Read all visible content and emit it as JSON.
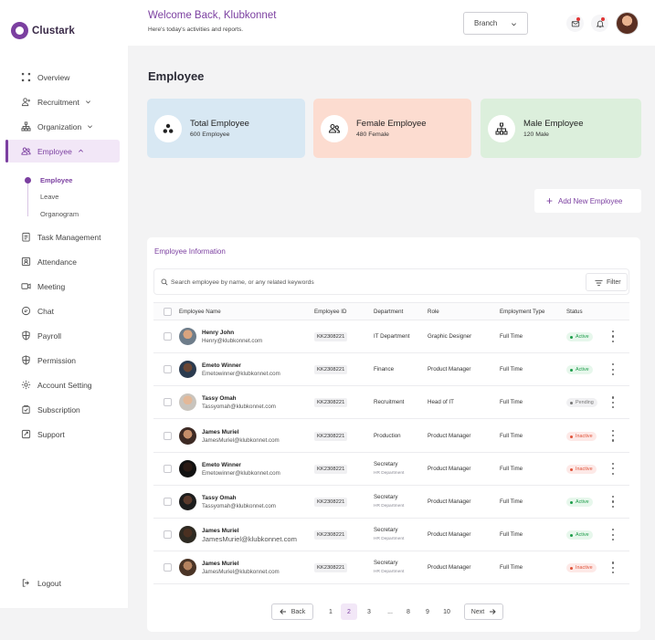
{
  "app": {
    "name": "Clustark",
    "brand_color": "#7b3fa0"
  },
  "header": {
    "welcome": "Welcome Back, Klubkonnet",
    "subtitle": "Here's today's activities and reports.",
    "branch_label": "Branch",
    "icons": [
      "mail-icon",
      "bell-icon",
      "user-avatar"
    ]
  },
  "sidebar": {
    "items": [
      {
        "label": "Overview",
        "icon": "grid-icon"
      },
      {
        "label": "Recruitment",
        "icon": "user-plus-icon",
        "expandable": true
      },
      {
        "label": "Organization",
        "icon": "hierarchy-icon",
        "expandable": true
      },
      {
        "label": "Employee",
        "icon": "users-icon",
        "expandable": true,
        "active": true
      },
      {
        "label": "Task Management",
        "icon": "clipboard-icon"
      },
      {
        "label": "Attendance",
        "icon": "id-card-icon"
      },
      {
        "label": "Meeting",
        "icon": "video-icon"
      },
      {
        "label": "Chat",
        "icon": "chat-icon"
      },
      {
        "label": "Payroll",
        "icon": "shield-icon"
      },
      {
        "label": "Permission",
        "icon": "shield-check-icon"
      },
      {
        "label": "Account Setting",
        "icon": "gear-icon"
      },
      {
        "label": "Subscription",
        "icon": "card-icon"
      },
      {
        "label": "Support",
        "icon": "support-icon"
      }
    ],
    "sub_items": [
      "Employee",
      "Leave",
      "Organogram"
    ],
    "logout": "Logout"
  },
  "main": {
    "title": "Employee",
    "stats": [
      {
        "title": "Total Employee",
        "sub": "600 Employee",
        "color": "#d8e8f3"
      },
      {
        "title": "Female Employee",
        "sub": "480 Female",
        "color": "#fcdcd0"
      },
      {
        "title": "Male Employee",
        "sub": "120 Male",
        "color": "#dcefdc"
      }
    ],
    "add_button": "Add New Employee"
  },
  "table": {
    "title": "Employee Information",
    "search_placeholder": "Search employee by name, or any related keywords",
    "filter_label": "Filter",
    "columns": [
      "Employee Name",
      "Employee ID",
      "Department",
      "Role",
      "Employment Type",
      "Status"
    ],
    "rows": [
      {
        "name": "Henry John",
        "email": "Henry@klubkonnet.com",
        "id": "KK2308221",
        "dept": "IT Department",
        "dept_sub": "",
        "role": "Graphic Designer",
        "type": "Full Time",
        "status": "Active",
        "status_key": "active"
      },
      {
        "name": "Emeto  Winner",
        "email": "Emetowinner@klubkonnet.com",
        "id": "KK2308221",
        "dept": "Finance",
        "dept_sub": "",
        "role": "Product Manager",
        "type": "Full Time",
        "status": "Active",
        "status_key": "active"
      },
      {
        "name": "Tassy Omah",
        "email": "Tassyomah@klubkonnet.com",
        "id": "KK2308221",
        "dept": "Recruitment",
        "dept_sub": "",
        "role": "Head of IT",
        "type": "Full Time",
        "status": "Pending",
        "status_key": "pending"
      },
      {
        "name": "James Muriel",
        "email": "JamesMuriel@klubkonnet.com",
        "id": "KK2308221",
        "dept": "Production",
        "dept_sub": "",
        "role": "Product Manager",
        "type": "Full Time",
        "status": "Inactive",
        "status_key": "inactive"
      },
      {
        "name": "Emeto  Winner",
        "email": "Emetowinner@klubkonnet.com",
        "id": "KK2308221",
        "dept": "Secretary",
        "dept_sub": "HR Department",
        "role": "Product Manager",
        "type": "Full Time",
        "status": "Inactive",
        "status_key": "inactive"
      },
      {
        "name": "Tassy Omah",
        "email": "Tassyomah@klubkonnet.com",
        "id": "KK2308221",
        "dept": "Secretary",
        "dept_sub": "HR Department",
        "role": "Product Manager",
        "type": "Full Time",
        "status": "Active",
        "status_key": "active"
      },
      {
        "name": "James Muriel",
        "email": "JamesMuriel@klubkonnet.com",
        "id": "KK2308221",
        "dept": "Secretary",
        "dept_sub": "HR Department",
        "role": "Product Manager",
        "type": "Full Time",
        "status": "Active",
        "status_key": "active",
        "big_email": true
      },
      {
        "name": "James Muriel",
        "email": "JamesMuriel@klubkonnet.com",
        "id": "KK2308221",
        "dept": "Secretary",
        "dept_sub": "HR Department",
        "role": "Product Manager",
        "type": "Full Time",
        "status": "Inactive",
        "status_key": "inactive"
      }
    ],
    "pagination": {
      "back": "Back",
      "next": "Next",
      "pages": [
        "1",
        "2",
        "3",
        "...",
        "8",
        "9",
        "10"
      ],
      "current": "2"
    }
  }
}
